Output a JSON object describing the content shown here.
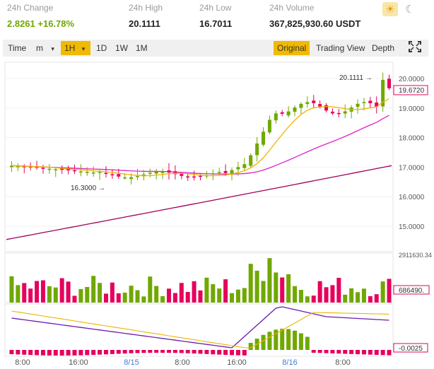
{
  "stats": [
    {
      "label": "24h Change",
      "value": "2.8261",
      "extra": "+16.78%"
    },
    {
      "label": "24h High",
      "value": "20.1111"
    },
    {
      "label": "24h Low",
      "value": "16.7011"
    },
    {
      "label": "24h Volume",
      "value": "367,825,930.60 USDT"
    }
  ],
  "theme": {
    "light_icon": "sun-icon",
    "dark_icon": "moon-icon"
  },
  "toolbar": {
    "time": "Time",
    "minute": "m",
    "interval": "1H",
    "interval_caret": "▾",
    "minute_caret": "▾",
    "d1": "1D",
    "w1": "1W",
    "mo1": "1M",
    "original": "Original",
    "trading_view": "Trading View",
    "depth": "Depth",
    "fullscreen_icon": "fullscreen-icon"
  },
  "price_axis": [
    "20.0000",
    "19.0000",
    "18.0000",
    "17.0000",
    "16.0000",
    "15.0000"
  ],
  "current_price": "19.6720",
  "high_marker": "20.1111",
  "low_marker": "16.3000",
  "volume_axis": {
    "top": "2911630.34",
    "current": "686490."
  },
  "macd_axis": {
    "current": "-0.0025"
  },
  "time_axis": [
    "8:00",
    "16:00",
    "8/15",
    "8:00",
    "16:00",
    "8/16",
    "8:00"
  ],
  "colors": {
    "up": "#70a800",
    "down": "#e6005c",
    "ma_fast": "#f0b400",
    "ma_mid": "#e020c8",
    "ma_slow": "#a0005a",
    "macd_line": "#6a1bb0",
    "signal_line": "#f0b400",
    "accent": "#f1b900"
  }
}
